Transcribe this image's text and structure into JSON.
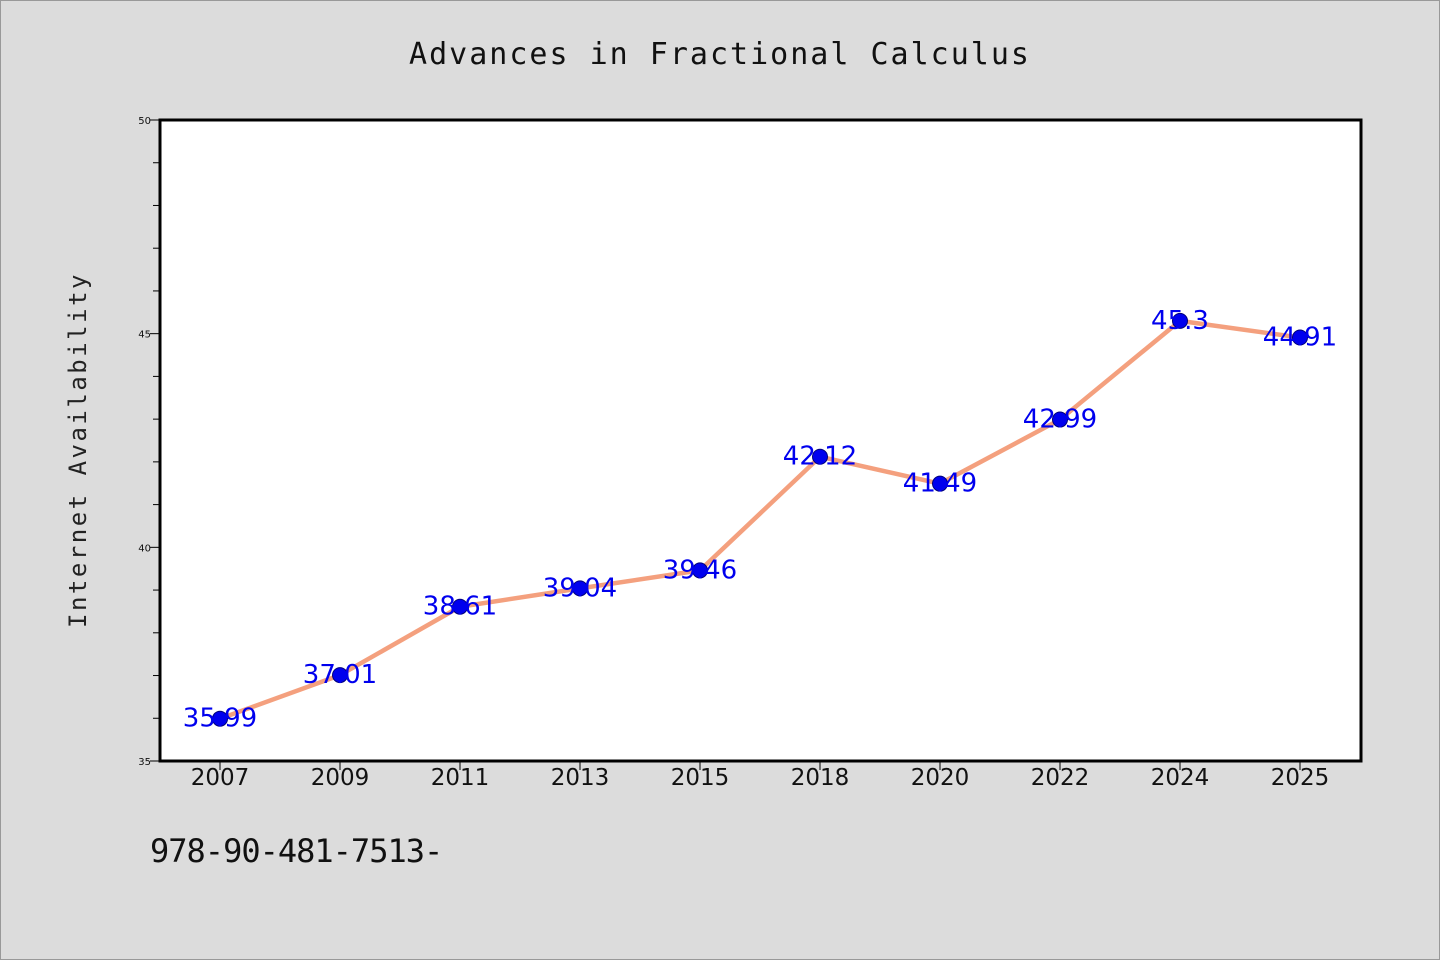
{
  "chart_data": {
    "type": "line",
    "title": "Advances in Fractional Calculus",
    "ylabel": "Internet Availability",
    "xlabel": "",
    "categories": [
      "2007",
      "2009",
      "2011",
      "2013",
      "2015",
      "2018",
      "2020",
      "2022",
      "2024",
      "2025"
    ],
    "series": [
      {
        "values": [
          35.99,
          37.01,
          38.61,
          39.04,
          39.46,
          42.12,
          41.49,
          42.99,
          45.3,
          44.91
        ],
        "data_labels": [
          "35.99",
          "37.01",
          "38.61",
          "39.04",
          "39.46",
          "42.12",
          "41.49",
          "42.99",
          "45.3",
          "44.91"
        ],
        "line_color": "#f4a07e",
        "marker_color": "#0000ee",
        "label_color": "#0000ee"
      }
    ],
    "ylim": [
      35,
      50
    ],
    "yticks": [
      "35",
      "40",
      "45",
      "50"
    ],
    "grid": false,
    "legend": "none"
  },
  "footer": {
    "code": "978-90-481-7513-"
  },
  "colors": {
    "background": "#dcdcdc",
    "plot_background": "#ffffff",
    "axis": "#000000"
  }
}
